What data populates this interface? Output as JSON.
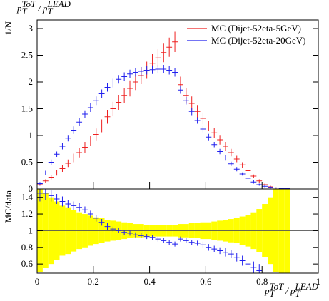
{
  "chart_data": [
    {
      "type": "histogram",
      "title": [
        {
          "text": "p",
          "script": "base"
        },
        {
          "text": "T",
          "script": "sub"
        },
        {
          "text": "ToT",
          "script": "sup"
        },
        {
          "text": "/",
          "script": "base"
        },
        {
          "text": "p",
          "script": "base"
        },
        {
          "text": "T",
          "script": "sub"
        },
        {
          "text": "LEAD",
          "script": "sup"
        }
      ],
      "y_label": "1/N",
      "bins": [
        0,
        0.02,
        0.04,
        0.06,
        0.08,
        0.1,
        0.12,
        0.14,
        0.16,
        0.18,
        0.2,
        0.22,
        0.24,
        0.26,
        0.28,
        0.3,
        0.32,
        0.34,
        0.36,
        0.38,
        0.4,
        0.42,
        0.44,
        0.46,
        0.48,
        0.5,
        0.52,
        0.54,
        0.56,
        0.58,
        0.6,
        0.62,
        0.64,
        0.66,
        0.68,
        0.7,
        0.72,
        0.74,
        0.76,
        0.78,
        0.8,
        0.82,
        0.84,
        0.86,
        0.88,
        0.9,
        0.92,
        0.94,
        0.96,
        0.98,
        1
      ],
      "xlim": [
        0,
        1
      ],
      "ylim": [
        0,
        3.16
      ],
      "yticks": [
        0,
        0.5,
        1,
        1.5,
        2,
        2.5,
        3
      ],
      "legend": "top-right",
      "series": [
        {
          "name": "MC (Dijet-52eta-5GeV)",
          "color": "#ee2020",
          "values": [
            0.08,
            0.15,
            0.22,
            0.3,
            0.38,
            0.48,
            0.58,
            0.68,
            0.78,
            0.9,
            1.02,
            1.18,
            1.35,
            1.5,
            1.62,
            1.75,
            1.88,
            2.0,
            2.12,
            2.22,
            2.35,
            2.45,
            2.55,
            2.65,
            2.75,
            1.95,
            1.75,
            1.6,
            1.45,
            1.32,
            1.18,
            1.05,
            0.92,
            0.8,
            0.68,
            0.56,
            0.45,
            0.34,
            0.24,
            0.15,
            0.08,
            0.04,
            0.02,
            0.01,
            0.005,
            0,
            0,
            0,
            0,
            0
          ],
          "errors": [
            0.02,
            0.03,
            0.04,
            0.05,
            0.06,
            0.07,
            0.08,
            0.09,
            0.1,
            0.1,
            0.11,
            0.12,
            0.13,
            0.13,
            0.14,
            0.14,
            0.15,
            0.15,
            0.16,
            0.16,
            0.17,
            0.17,
            0.18,
            0.18,
            0.19,
            0.15,
            0.14,
            0.13,
            0.12,
            0.11,
            0.1,
            0.09,
            0.09,
            0.08,
            0.07,
            0.06,
            0.05,
            0.04,
            0.03,
            0.03,
            0.02,
            0.02,
            0.01,
            0.01,
            0.01,
            0,
            0,
            0,
            0,
            0
          ]
        },
        {
          "name": "MC (Dijet-52eta-20GeV)",
          "color": "#2020ee",
          "values": [
            0.1,
            0.3,
            0.5,
            0.65,
            0.8,
            0.95,
            1.1,
            1.25,
            1.4,
            1.52,
            1.65,
            1.78,
            1.9,
            1.98,
            2.05,
            2.1,
            2.15,
            2.18,
            2.2,
            2.22,
            2.23,
            2.24,
            2.24,
            2.22,
            2.18,
            1.85,
            1.65,
            1.45,
            1.28,
            1.12,
            0.97,
            0.83,
            0.7,
            0.58,
            0.47,
            0.37,
            0.28,
            0.2,
            0.13,
            0.08,
            0.05,
            0.03,
            0.02,
            0.01,
            0.01,
            0,
            0,
            0,
            0,
            0
          ],
          "errors": [
            0.03,
            0.04,
            0.05,
            0.05,
            0.06,
            0.06,
            0.07,
            0.07,
            0.07,
            0.08,
            0.08,
            0.08,
            0.08,
            0.08,
            0.08,
            0.08,
            0.08,
            0.08,
            0.08,
            0.08,
            0.08,
            0.08,
            0.08,
            0.08,
            0.08,
            0.07,
            0.07,
            0.07,
            0.06,
            0.06,
            0.06,
            0.05,
            0.05,
            0.05,
            0.04,
            0.04,
            0.03,
            0.03,
            0.03,
            0.02,
            0.02,
            0.02,
            0.01,
            0.01,
            0.01,
            0,
            0,
            0,
            0,
            0
          ]
        }
      ]
    },
    {
      "type": "ratio",
      "y_label": "MC/data",
      "x_label": [
        {
          "text": "p",
          "script": "base"
        },
        {
          "text": "T",
          "script": "sub"
        },
        {
          "text": "ToT",
          "script": "sup"
        },
        {
          "text": "/",
          "script": "base"
        },
        {
          "text": "p",
          "script": "base"
        },
        {
          "text": "T",
          "script": "sub"
        },
        {
          "text": "LEAD",
          "script": "sup"
        }
      ],
      "xlim": [
        0,
        1
      ],
      "xticks": [
        0,
        0.2,
        0.4,
        0.6,
        0.8,
        1
      ],
      "ylim": [
        0.49,
        1.5
      ],
      "yticks": [
        0.6,
        0.8,
        1,
        1.2,
        1.4
      ],
      "reference": 1,
      "band": {
        "color": "#ffff00",
        "errors": [
          0.5,
          0.45,
          0.4,
          0.35,
          0.3,
          0.28,
          0.25,
          0.22,
          0.2,
          0.18,
          0.16,
          0.15,
          0.13,
          0.12,
          0.11,
          0.1,
          0.09,
          0.08,
          0.08,
          0.07,
          0.07,
          0.07,
          0.07,
          0.07,
          0.07,
          0.08,
          0.08,
          0.09,
          0.09,
          0.1,
          0.1,
          0.11,
          0.12,
          0.13,
          0.14,
          0.15,
          0.17,
          0.19,
          0.22,
          0.26,
          0.32,
          0.4,
          0.5,
          0.6,
          0.6,
          null,
          null,
          null,
          null,
          null
        ]
      },
      "series": [
        {
          "color": "#2020ee",
          "values": [
            1.45,
            1.45,
            1.42,
            1.38,
            1.35,
            1.32,
            1.3,
            1.28,
            1.25,
            1.2,
            1.15,
            1.1,
            1.05,
            1.02,
            1.0,
            0.98,
            0.97,
            0.95,
            0.94,
            0.93,
            0.92,
            0.9,
            0.88,
            0.86,
            0.84,
            0.9,
            0.88,
            0.86,
            0.85,
            0.83,
            0.8,
            0.78,
            0.76,
            0.74,
            0.72,
            0.68,
            0.64,
            0.6,
            0.56,
            0.52,
            null,
            null,
            null,
            null,
            null,
            null,
            null,
            null,
            null,
            null
          ],
          "errors": [
            0.1,
            0.08,
            0.07,
            0.06,
            0.06,
            0.05,
            0.05,
            0.05,
            0.04,
            0.04,
            0.04,
            0.04,
            0.04,
            0.03,
            0.03,
            0.03,
            0.03,
            0.03,
            0.03,
            0.03,
            0.03,
            0.03,
            0.03,
            0.03,
            0.03,
            0.03,
            0.03,
            0.03,
            0.03,
            0.04,
            0.04,
            0.04,
            0.04,
            0.05,
            0.05,
            0.05,
            0.06,
            0.06,
            0.07,
            0.08,
            null,
            null,
            null,
            null,
            null,
            null,
            null,
            null,
            null,
            null
          ]
        }
      ]
    }
  ]
}
